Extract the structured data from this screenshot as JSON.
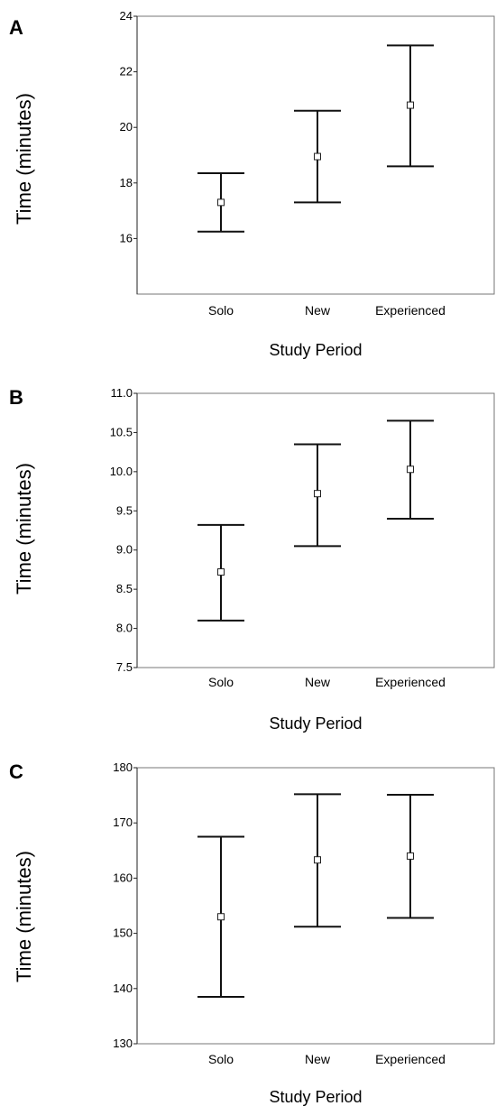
{
  "chart_data": [
    {
      "panel": "A",
      "type": "errorbar",
      "ylabel": "Time (minutes)",
      "xlabel": "Study Period",
      "categories": [
        "Solo",
        "New",
        "Experienced"
      ],
      "ylim": [
        14,
        24
      ],
      "yticks": [
        16,
        18,
        20,
        22,
        24
      ],
      "ytick_labels": [
        "16",
        "18",
        "20",
        "22",
        "24"
      ],
      "points": [
        {
          "category": "Solo",
          "mean": 17.3,
          "lower": 16.25,
          "upper": 18.35
        },
        {
          "category": "New",
          "mean": 18.95,
          "lower": 17.3,
          "upper": 20.6
        },
        {
          "category": "Experienced",
          "mean": 20.8,
          "lower": 18.6,
          "upper": 22.95
        }
      ],
      "grid": false
    },
    {
      "panel": "B",
      "type": "errorbar",
      "ylabel": "Time (minutes)",
      "xlabel": "Study Period",
      "categories": [
        "Solo",
        "New",
        "Experienced"
      ],
      "ylim": [
        7.5,
        11.0
      ],
      "yticks": [
        7.5,
        8.0,
        8.5,
        9.0,
        9.5,
        10.0,
        10.5,
        11.0
      ],
      "ytick_labels": [
        "7.5",
        "8.0",
        "8.5",
        "9.0",
        "9.5",
        "10.0",
        "10.5",
        "11.0"
      ],
      "points": [
        {
          "category": "Solo",
          "mean": 8.72,
          "lower": 8.1,
          "upper": 9.32
        },
        {
          "category": "New",
          "mean": 9.72,
          "lower": 9.05,
          "upper": 10.35
        },
        {
          "category": "Experienced",
          "mean": 10.03,
          "lower": 9.4,
          "upper": 10.65
        }
      ],
      "grid": false
    },
    {
      "panel": "C",
      "type": "errorbar",
      "ylabel": "Time (minutes)",
      "xlabel": "Study Period",
      "categories": [
        "Solo",
        "New",
        "Experienced"
      ],
      "ylim": [
        130,
        180
      ],
      "yticks": [
        130,
        140,
        150,
        160,
        170,
        180
      ],
      "ytick_labels": [
        "130",
        "140",
        "150",
        "160",
        "170",
        "180"
      ],
      "points": [
        {
          "category": "Solo",
          "mean": 153,
          "lower": 138.5,
          "upper": 167.5
        },
        {
          "category": "New",
          "mean": 163.3,
          "lower": 151.2,
          "upper": 175.2
        },
        {
          "category": "Experienced",
          "mean": 164,
          "lower": 152.8,
          "upper": 175.1
        }
      ],
      "grid": false
    }
  ]
}
